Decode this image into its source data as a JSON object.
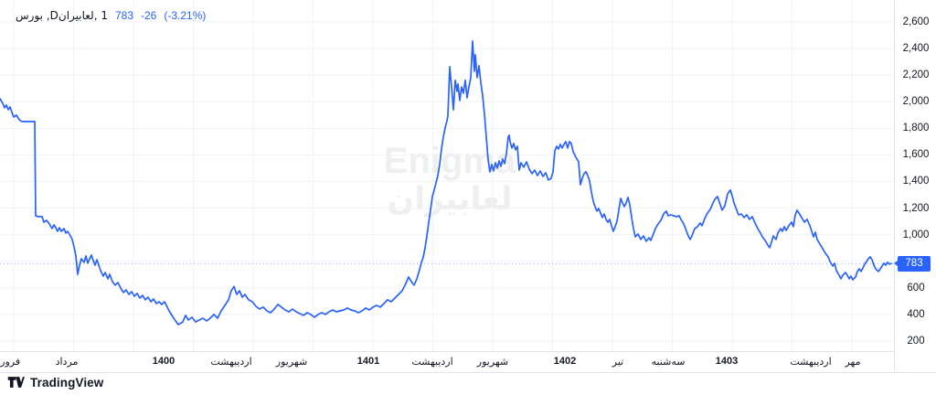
{
  "legend": {
    "title_display": "1 ,لعابیرانD, بورس",
    "symbol": "لعابیران",
    "interval": "1D",
    "exchange": "بورس",
    "last_price": "783",
    "change": "-26",
    "change_pct": "(-3.21%)"
  },
  "watermark": {
    "line1": "Enigma",
    "line2": "لعابیران"
  },
  "footer": {
    "brand": "TradingView"
  },
  "colors": {
    "accent": "#2962ff",
    "text": "#131722",
    "grid": "#f0f3fa",
    "axis_border": "#e0e3eb",
    "price_tag_bg": "#2962ff",
    "price_tag_text": "#ffffff"
  },
  "chart_data": {
    "type": "line",
    "title": "لعابیران, 1D, بورس",
    "ylabel": "",
    "xlabel": "",
    "ylim": [
      150,
      2650
    ],
    "grid": true,
    "last_price": 783,
    "change": -26,
    "change_pct": -3.21,
    "y_ticks": [
      200,
      400,
      600,
      800,
      1000,
      1200,
      1400,
      1600,
      1800,
      2000,
      2200,
      2400,
      2600
    ],
    "y_axis_labels": [
      {
        "value": 2600,
        "text": "2,600"
      },
      {
        "value": 2400,
        "text": "2,400"
      },
      {
        "value": 2200,
        "text": "2,200"
      },
      {
        "value": 2000,
        "text": "2,000"
      },
      {
        "value": 1800,
        "text": "1,800"
      },
      {
        "value": 1600,
        "text": "1,600"
      },
      {
        "value": 1400,
        "text": "1,400"
      },
      {
        "value": 1200,
        "text": "1,200"
      },
      {
        "value": 1000,
        "text": "1,000"
      },
      {
        "value": 600,
        "text": "600"
      },
      {
        "value": 400,
        "text": "400"
      },
      {
        "value": 200,
        "text": "200"
      }
    ],
    "x_ticks": [
      {
        "x": 3,
        "label": "فروردین",
        "bold": false
      },
      {
        "x": 73,
        "label": "مرداد",
        "bold": false
      },
      {
        "x": 179,
        "label": "1400",
        "bold": true
      },
      {
        "x": 253,
        "label": "اردیبهشت",
        "bold": false
      },
      {
        "x": 319,
        "label": "شهریور",
        "bold": false
      },
      {
        "x": 403,
        "label": "1401",
        "bold": true
      },
      {
        "x": 473,
        "label": "اردیبهشت",
        "bold": false
      },
      {
        "x": 539,
        "label": "شهریور",
        "bold": false
      },
      {
        "x": 618,
        "label": "1402",
        "bold": true
      },
      {
        "x": 676,
        "label": "تیر",
        "bold": false
      },
      {
        "x": 731,
        "label": "سه‌شنبه",
        "bold": false
      },
      {
        "x": 795,
        "label": "1403",
        "bold": true
      },
      {
        "x": 887,
        "label": "اردیبهشت",
        "bold": false
      },
      {
        "x": 933,
        "label": "مهر",
        "bold": false
      }
    ],
    "x_gridlines": [
      15,
      80.5,
      146,
      211.5,
      277,
      342.5,
      408,
      473.5,
      539,
      604.5,
      670,
      735.5,
      801,
      866.5,
      932
    ],
    "series_name": "لعابیران close",
    "series": [
      [
        0,
        2023
      ],
      [
        3,
        1988
      ],
      [
        5,
        1954
      ],
      [
        7,
        1975
      ],
      [
        9,
        1940
      ],
      [
        11,
        1961
      ],
      [
        13,
        1920
      ],
      [
        15,
        1885
      ],
      [
        18,
        1899
      ],
      [
        21,
        1865
      ],
      [
        24,
        1851
      ],
      [
        28,
        1851
      ],
      [
        32,
        1851
      ],
      [
        36,
        1851
      ],
      [
        38,
        1851
      ],
      [
        39,
        1142
      ],
      [
        42,
        1136
      ],
      [
        46,
        1136
      ],
      [
        48,
        1094
      ],
      [
        51,
        1108
      ],
      [
        54,
        1081
      ],
      [
        57,
        1046
      ],
      [
        59,
        1074
      ],
      [
        61,
        1053
      ],
      [
        63,
        1025
      ],
      [
        65,
        1053
      ],
      [
        67,
        1025
      ],
      [
        70,
        1046
      ],
      [
        72,
        1012
      ],
      [
        74,
        1025
      ],
      [
        77,
        991
      ],
      [
        79,
        964
      ],
      [
        81,
        909
      ],
      [
        83,
        840
      ],
      [
        85,
        702
      ],
      [
        87,
        771
      ],
      [
        89,
        819
      ],
      [
        92,
        792
      ],
      [
        94,
        840
      ],
      [
        96,
        785
      ],
      [
        98,
        819
      ],
      [
        100,
        847
      ],
      [
        102,
        805
      ],
      [
        104,
        771
      ],
      [
        106,
        812
      ],
      [
        108,
        771
      ],
      [
        110,
        730
      ],
      [
        113,
        688
      ],
      [
        115,
        716
      ],
      [
        118,
        668
      ],
      [
        120,
        702
      ],
      [
        123,
        647
      ],
      [
        126,
        620
      ],
      [
        129,
        640
      ],
      [
        132,
        599
      ],
      [
        135,
        565
      ],
      [
        138,
        585
      ],
      [
        141,
        551
      ],
      [
        144,
        571
      ],
      [
        147,
        537
      ],
      [
        150,
        558
      ],
      [
        153,
        523
      ],
      [
        156,
        544
      ],
      [
        159,
        510
      ],
      [
        162,
        530
      ],
      [
        165,
        496
      ],
      [
        168,
        516
      ],
      [
        171,
        482
      ],
      [
        174,
        496
      ],
      [
        177,
        475
      ],
      [
        180,
        496
      ],
      [
        185,
        427
      ],
      [
        190,
        372
      ],
      [
        195,
        324
      ],
      [
        200,
        344
      ],
      [
        203,
        393
      ],
      [
        206,
        358
      ],
      [
        210,
        379
      ],
      [
        214,
        344
      ],
      [
        218,
        358
      ],
      [
        222,
        372
      ],
      [
        226,
        351
      ],
      [
        230,
        372
      ],
      [
        234,
        400
      ],
      [
        238,
        372
      ],
      [
        242,
        427
      ],
      [
        246,
        468
      ],
      [
        250,
        510
      ],
      [
        253,
        578
      ],
      [
        256,
        610
      ],
      [
        259,
        551
      ],
      [
        262,
        578
      ],
      [
        265,
        530
      ],
      [
        268,
        551
      ],
      [
        272,
        510
      ],
      [
        276,
        496
      ],
      [
        280,
        461
      ],
      [
        284,
        441
      ],
      [
        288,
        455
      ],
      [
        292,
        427
      ],
      [
        296,
        413
      ],
      [
        300,
        441
      ],
      [
        304,
        475
      ],
      [
        308,
        455
      ],
      [
        312,
        434
      ],
      [
        316,
        420
      ],
      [
        320,
        441
      ],
      [
        324,
        420
      ],
      [
        328,
        406
      ],
      [
        332,
        393
      ],
      [
        336,
        413
      ],
      [
        340,
        400
      ],
      [
        344,
        379
      ],
      [
        348,
        400
      ],
      [
        352,
        413
      ],
      [
        356,
        400
      ],
      [
        360,
        420
      ],
      [
        364,
        434
      ],
      [
        368,
        420
      ],
      [
        372,
        427
      ],
      [
        376,
        434
      ],
      [
        380,
        448
      ],
      [
        384,
        434
      ],
      [
        388,
        427
      ],
      [
        392,
        413
      ],
      [
        396,
        427
      ],
      [
        400,
        448
      ],
      [
        404,
        434
      ],
      [
        408,
        455
      ],
      [
        412,
        468
      ],
      [
        416,
        455
      ],
      [
        420,
        482
      ],
      [
        424,
        510
      ],
      [
        428,
        496
      ],
      [
        432,
        523
      ],
      [
        436,
        551
      ],
      [
        440,
        578
      ],
      [
        444,
        633
      ],
      [
        447,
        682
      ],
      [
        450,
        647
      ],
      [
        453,
        620
      ],
      [
        456,
        668
      ],
      [
        459,
        737
      ],
      [
        461,
        790
      ],
      [
        463,
        830
      ],
      [
        465,
        900
      ],
      [
        467,
        990
      ],
      [
        469,
        1090
      ],
      [
        471,
        1185
      ],
      [
        473,
        1287
      ],
      [
        475,
        1335
      ],
      [
        477,
        1390
      ],
      [
        479,
        1445
      ],
      [
        481,
        1528
      ],
      [
        483,
        1645
      ],
      [
        485,
        1734
      ],
      [
        487,
        1803
      ],
      [
        489,
        1858
      ],
      [
        490,
        1892
      ],
      [
        492,
        2264
      ],
      [
        494,
        2112
      ],
      [
        496,
        1940
      ],
      [
        497,
        2044
      ],
      [
        498,
        2161
      ],
      [
        500,
        2078
      ],
      [
        501,
        2133
      ],
      [
        503,
        2009
      ],
      [
        505,
        2112
      ],
      [
        507,
        2064
      ],
      [
        509,
        2161
      ],
      [
        511,
        2030
      ],
      [
        513,
        2112
      ],
      [
        515,
        2181
      ],
      [
        517,
        2456
      ],
      [
        519,
        2229
      ],
      [
        520,
        2353
      ],
      [
        522,
        2181
      ],
      [
        524,
        2271
      ],
      [
        526,
        2147
      ],
      [
        528,
        2044
      ],
      [
        530,
        1906
      ],
      [
        532,
        1734
      ],
      [
        534,
        1562
      ],
      [
        536,
        1473
      ],
      [
        538,
        1528
      ],
      [
        540,
        1479
      ],
      [
        542,
        1541
      ],
      [
        544,
        1500
      ],
      [
        546,
        1555
      ],
      [
        548,
        1514
      ],
      [
        550,
        1569
      ],
      [
        552,
        1534
      ],
      [
        554,
        1610
      ],
      [
        556,
        1734
      ],
      [
        557,
        1748
      ],
      [
        558,
        1700
      ],
      [
        560,
        1652
      ],
      [
        562,
        1686
      ],
      [
        564,
        1638
      ],
      [
        566,
        1665
      ],
      [
        568,
        1486
      ],
      [
        570,
        1541
      ],
      [
        573,
        1507
      ],
      [
        576,
        1548
      ],
      [
        579,
        1493
      ],
      [
        582,
        1459
      ],
      [
        585,
        1486
      ],
      [
        588,
        1445
      ],
      [
        591,
        1479
      ],
      [
        594,
        1438
      ],
      [
        597,
        1466
      ],
      [
        600,
        1411
      ],
      [
        603,
        1424
      ],
      [
        605,
        1473
      ],
      [
        607,
        1631
      ],
      [
        609,
        1665
      ],
      [
        611,
        1645
      ],
      [
        613,
        1679
      ],
      [
        615,
        1652
      ],
      [
        617,
        1679
      ],
      [
        619,
        1700
      ],
      [
        621,
        1652
      ],
      [
        623,
        1700
      ],
      [
        625,
        1686
      ],
      [
        627,
        1624
      ],
      [
        630,
        1583
      ],
      [
        633,
        1548
      ],
      [
        635,
        1376
      ],
      [
        637,
        1424
      ],
      [
        639,
        1459
      ],
      [
        641,
        1473
      ],
      [
        643,
        1445
      ],
      [
        645,
        1404
      ],
      [
        647,
        1321
      ],
      [
        649,
        1252
      ],
      [
        651,
        1211
      ],
      [
        653,
        1177
      ],
      [
        655,
        1197
      ],
      [
        657,
        1163
      ],
      [
        659,
        1129
      ],
      [
        661,
        1156
      ],
      [
        663,
        1115
      ],
      [
        665,
        1094
      ],
      [
        667,
        1115
      ],
      [
        669,
        1067
      ],
      [
        671,
        1025
      ],
      [
        673,
        1060
      ],
      [
        675,
        1101
      ],
      [
        677,
        1184
      ],
      [
        679,
        1273
      ],
      [
        681,
        1239
      ],
      [
        683,
        1211
      ],
      [
        685,
        1239
      ],
      [
        687,
        1280
      ],
      [
        689,
        1225
      ],
      [
        691,
        1129
      ],
      [
        693,
        1046
      ],
      [
        695,
        984
      ],
      [
        698,
        1005
      ],
      [
        701,
        964
      ],
      [
        704,
        991
      ],
      [
        707,
        950
      ],
      [
        710,
        977
      ],
      [
        712,
        957
      ],
      [
        714,
        991
      ],
      [
        717,
        1046
      ],
      [
        720,
        1081
      ],
      [
        723,
        1108
      ],
      [
        726,
        1156
      ],
      [
        729,
        1177
      ],
      [
        731,
        1142
      ],
      [
        734,
        1149
      ],
      [
        737,
        1142
      ],
      [
        740,
        1136
      ],
      [
        743,
        1142
      ],
      [
        745,
        1115
      ],
      [
        748,
        1081
      ],
      [
        750,
        1046
      ],
      [
        753,
        991
      ],
      [
        755,
        964
      ],
      [
        757,
        991
      ],
      [
        760,
        1046
      ],
      [
        763,
        1060
      ],
      [
        766,
        1088
      ],
      [
        768,
        1067
      ],
      [
        771,
        1122
      ],
      [
        774,
        1163
      ],
      [
        777,
        1190
      ],
      [
        780,
        1239
      ],
      [
        782,
        1266
      ],
      [
        785,
        1287
      ],
      [
        787,
        1245
      ],
      [
        790,
        1184
      ],
      [
        793,
        1218
      ],
      [
        796,
        1307
      ],
      [
        799,
        1335
      ],
      [
        801,
        1294
      ],
      [
        803,
        1239
      ],
      [
        806,
        1184
      ],
      [
        808,
        1149
      ],
      [
        811,
        1156
      ],
      [
        814,
        1129
      ],
      [
        817,
        1149
      ],
      [
        820,
        1115
      ],
      [
        823,
        1136
      ],
      [
        826,
        1088
      ],
      [
        829,
        1046
      ],
      [
        832,
        1012
      ],
      [
        834,
        984
      ],
      [
        837,
        957
      ],
      [
        840,
        922
      ],
      [
        842,
        902
      ],
      [
        844,
        943
      ],
      [
        846,
        991
      ],
      [
        849,
        964
      ],
      [
        851,
        1012
      ],
      [
        854,
        1046
      ],
      [
        856,
        1025
      ],
      [
        858,
        1060
      ],
      [
        860,
        1032
      ],
      [
        863,
        1067
      ],
      [
        866,
        1094
      ],
      [
        868,
        1060
      ],
      [
        870,
        1149
      ],
      [
        872,
        1184
      ],
      [
        874,
        1163
      ],
      [
        877,
        1129
      ],
      [
        880,
        1094
      ],
      [
        883,
        1115
      ],
      [
        886,
        1067
      ],
      [
        888,
        1025
      ],
      [
        890,
        984
      ],
      [
        892,
        1018
      ],
      [
        894,
        964
      ],
      [
        897,
        929
      ],
      [
        900,
        895
      ],
      [
        903,
        860
      ],
      [
        906,
        833
      ],
      [
        908,
        798
      ],
      [
        911,
        764
      ],
      [
        913,
        785
      ],
      [
        915,
        730
      ],
      [
        918,
        695
      ],
      [
        920,
        668
      ],
      [
        922,
        695
      ],
      [
        925,
        716
      ],
      [
        927,
        695
      ],
      [
        929,
        668
      ],
      [
        931,
        688
      ],
      [
        933,
        661
      ],
      [
        936,
        682
      ],
      [
        938,
        723
      ],
      [
        940,
        743
      ],
      [
        942,
        723
      ],
      [
        944,
        750
      ],
      [
        946,
        778
      ],
      [
        948,
        798
      ],
      [
        950,
        819
      ],
      [
        952,
        833
      ],
      [
        954,
        812
      ],
      [
        956,
        771
      ],
      [
        958,
        743
      ],
      [
        961,
        723
      ],
      [
        963,
        743
      ],
      [
        965,
        764
      ],
      [
        967,
        785
      ],
      [
        969,
        771
      ],
      [
        971,
        792
      ],
      [
        973,
        778
      ],
      [
        975,
        783
      ]
    ]
  }
}
